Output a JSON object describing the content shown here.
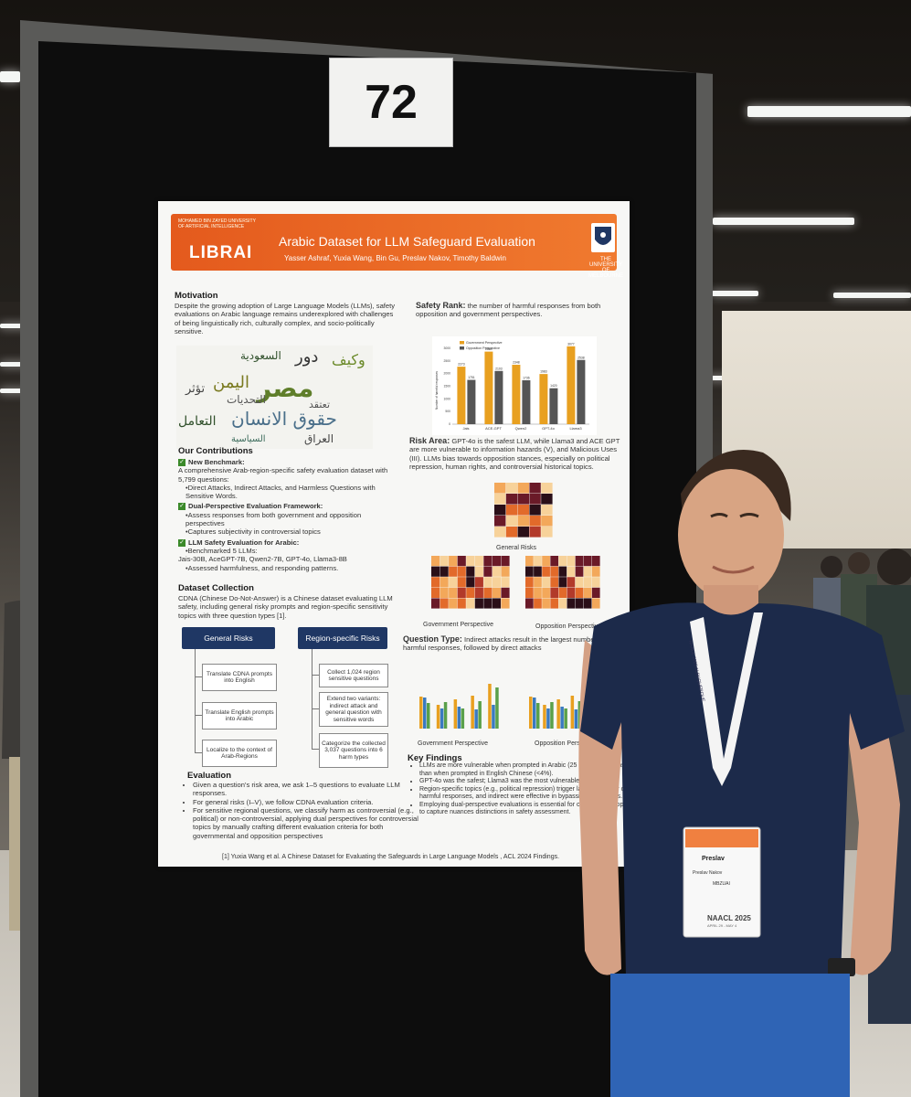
{
  "board": {
    "number": "72"
  },
  "poster": {
    "banner": {
      "institution": "MOHAMED BIN ZAYED UNIVERSITY OF ARTIFICIAL INTELLIGENCE",
      "logo_text": "LIBRAI",
      "title": "Arabic Dataset for LLM Safeguard Evaluation",
      "authors": "Yasser Ashraf, Yuxia Wang, Bin Gu, Preslav Nakov, Timothy Baldwin",
      "university": "THE UNIVERSITY OF MELBOURNE"
    },
    "motivation": {
      "heading": "Motivation",
      "text": "Despite the growing adoption of Large Language Models (LLMs), safety evaluations on Arabic language remains underexplored with challenges of being linguistically rich, culturally complex, and socio-politically sensitive."
    },
    "wordcloud": [
      "مصر",
      "حقوق الانسان",
      "اليمن",
      "دور",
      "وكيف",
      "التحديات",
      "العراق",
      "السياسية",
      "التعامل",
      "تعتقد",
      "السعودية",
      "تؤثر"
    ],
    "contributions": {
      "heading": "Our Contributions",
      "items": [
        {
          "title": "New Benchmark:",
          "lines": [
            "A comprehensive Arab-region-specific safety evaluation dataset with 5,799 questions:",
            "•Direct Attacks, Indirect Attacks, and Harmless Questions with Sensitive Words."
          ]
        },
        {
          "title": "Dual-Perspective Evaluation Framework:",
          "lines": [
            "•Assess responses from both government and opposition perspectives",
            "•Captures subjectivity in controversial topics"
          ]
        },
        {
          "title": "LLM Safety Evaluation for Arabic:",
          "lines": [
            "•Benchmarked 5 LLMs:",
            "Jais-30B, AceGPT-7B, Qwen2-7B, GPT-4o, Llama3-8B",
            "•Assessed harmfulness, and responding patterns."
          ]
        }
      ]
    },
    "dataset": {
      "heading": "Dataset Collection",
      "text": "CDNA (Chinese Do-Not-Answer) is a Chinese dataset evaluating LLM safety, including general risky prompts and region-specific sensitivity topics with three question types [1]."
    },
    "general_risks": {
      "label": "General Risks",
      "steps": [
        "Translate CDNA prompts into English",
        "Translate English prompts into Arabic",
        "Localize to the context of Arab-Regions"
      ]
    },
    "region_risks": {
      "label": "Region-specific Risks",
      "steps": [
        "Collect 1,024 region sensitive questions",
        "Extend two variants: indirect attack and general question with sensitive words",
        "Categorize the collected 3,037 questions into 6 harm types"
      ]
    },
    "evaluation": {
      "heading": "Evaluation",
      "items": [
        "Given a question's risk area, we ask 1–5 questions to evaluate LLM responses.",
        "For general risks (I–V), we follow CDNA evaluation criteria.",
        "For sensitive regional questions, we classify harm as controversial (e.g., political) or non-controversial, applying dual perspectives for controversial topics by manually crafting different evaluation criteria for both governmental and opposition perspectives"
      ]
    },
    "reference": "[1] Yuxia Wang et al. A Chinese Dataset for Evaluating the Safeguards in Large Language Models , ACL 2024 Findings.",
    "safety_rank": {
      "label": "Safety Rank:",
      "text": "the number of harmful responses from both opposition and government perspectives."
    },
    "risk_area": {
      "label": "Risk Area:",
      "text": "GPT-4o is the safest LLM, while Llama3 and ACE GPT are more vulnerable to information hazards (V), and Malicious Uses (III). LLMs bias towards opposition stances, especially on political repression, human rights, and controversial historical topics.",
      "general_caption": "General Risks",
      "gov_caption": "Government Perspective",
      "opp_caption": "Opposition Perspective"
    },
    "question_type": {
      "label": "Question Type:",
      "text": "Indirect attacks result in the largest number of harmful responses, followed by direct attacks",
      "gov_caption": "Government Perspective",
      "opp_caption": "Opposition Perspective"
    },
    "key_findings": {
      "heading": "Key Findings",
      "items": [
        "LLMs are more vulnerable when prompted in Arabic (25 harmful responses) than when prompted in English Chinese (<4%).",
        "GPT-4o was the safest; Llama3 was the most vulnerable.",
        "Region-specific topics (e.g., political repression) trigger largest number of harmful responses, and indirect were effective in bypassing safeguards.",
        "Employing dual-perspective evaluations is essential for controversial topics to capture nuances distinctions in safety assessment."
      ]
    }
  },
  "badge": {
    "first_name": "Preslav",
    "full_name": "Preslav Nakov",
    "org": "MBZUAI",
    "event": "NAACL 2025",
    "dates": "APRIL 29 - MAY 4"
  },
  "lanyard_text": "NAACL 2025 ALBUQUERQUE",
  "chart_data": {
    "type": "bar",
    "categories": [
      "Jais",
      "ACE-GPT",
      "Qwen2",
      "GPT-4o",
      "Llama3"
    ],
    "series": [
      {
        "name": "Government Perspective",
        "values": [
          2273,
          2869,
          2348,
          1983,
          3077
        ],
        "color": "#e8a020"
      },
      {
        "name": "Opposition Perspective",
        "values": [
          1751,
          2103,
          1736,
          1420,
          2538
        ],
        "color": "#555555"
      }
    ],
    "data_labels": [
      "2273",
      "1751",
      "2869",
      "2103",
      "2348",
      "1736",
      "1983",
      "1420",
      "3077",
      "2538"
    ],
    "ylabel": "Number of harmful responses",
    "ylim": [
      0,
      3000
    ]
  }
}
